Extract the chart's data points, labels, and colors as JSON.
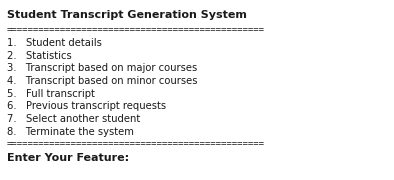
{
  "title": "Student Transcript Generation System",
  "separator": "================================================",
  "menu_items": [
    "1.   Student details",
    "2.   Statistics",
    "3.   Transcript based on major courses",
    "4.   Transcript based on minor courses",
    "5.   Full transcript",
    "6.   Previous transcript requests",
    "7.   Select another student",
    "8.   Terminate the system"
  ],
  "footer": "Enter Your Feature:",
  "bg_color": "#ffffff",
  "text_color": "#1a1a1a",
  "title_fontsize": 8.0,
  "menu_fontsize": 7.2,
  "sep_fontsize": 6.5,
  "footer_fontsize": 8.0
}
